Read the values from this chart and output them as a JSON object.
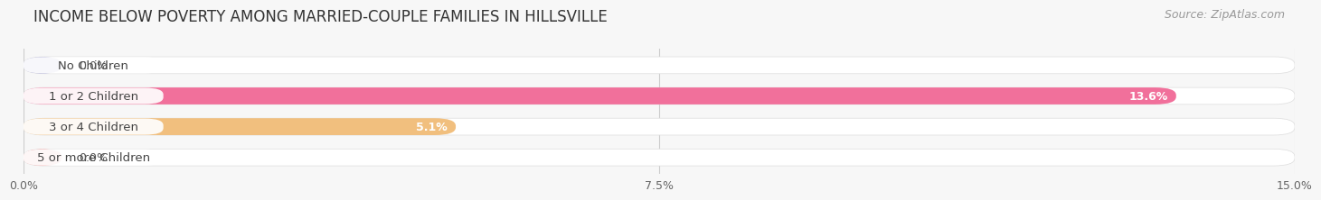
{
  "title": "INCOME BELOW POVERTY AMONG MARRIED-COUPLE FAMILIES IN HILLSVILLE",
  "source": "Source: ZipAtlas.com",
  "categories": [
    "No Children",
    "1 or 2 Children",
    "3 or 4 Children",
    "5 or more Children"
  ],
  "values": [
    0.0,
    13.6,
    5.1,
    0.0
  ],
  "bar_colors": [
    "#9999cc",
    "#f06090",
    "#f0b870",
    "#f09090"
  ],
  "xlim": [
    0,
    15.0
  ],
  "xticks": [
    0.0,
    7.5,
    15.0
  ],
  "xticklabels": [
    "0.0%",
    "7.5%",
    "15.0%"
  ],
  "background_color": "#f7f7f7",
  "bar_bg_color": "#ebebeb",
  "title_fontsize": 12,
  "source_fontsize": 9,
  "label_fontsize": 9.5,
  "value_fontsize": 9
}
